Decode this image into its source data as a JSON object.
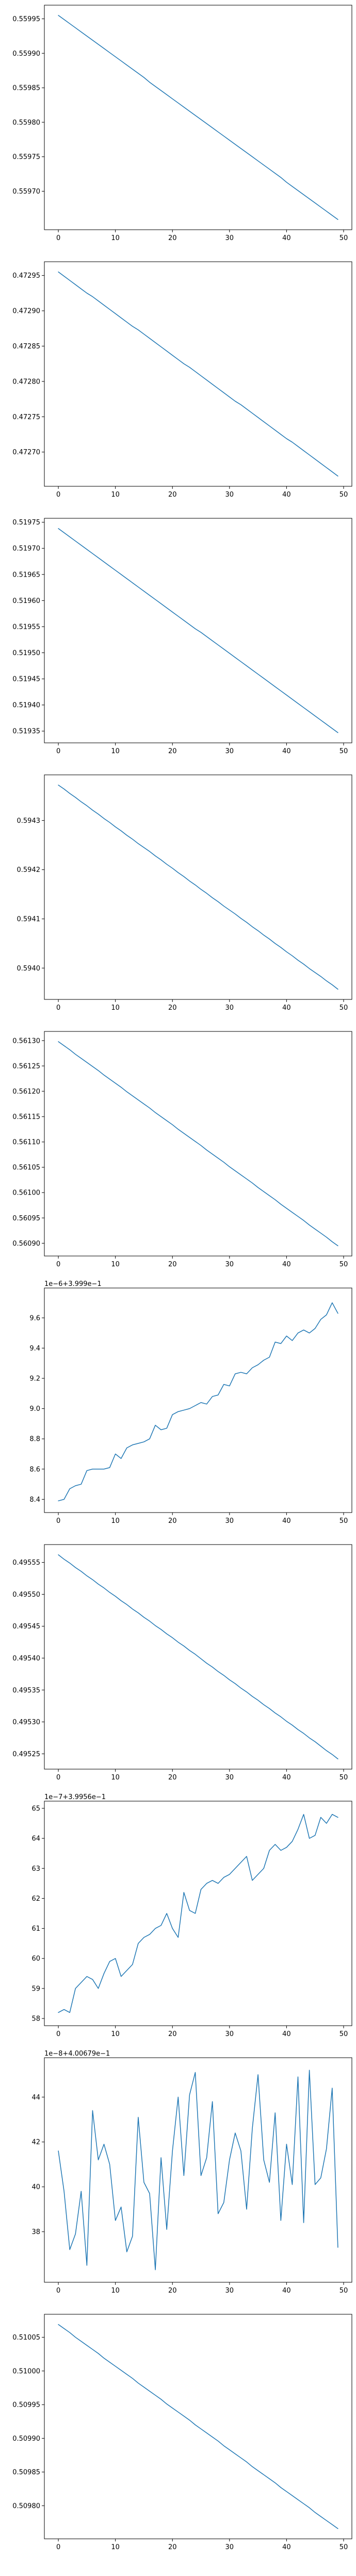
{
  "style": {
    "line_color": "#1f77b4",
    "axes_color": "#000000",
    "background": "#ffffff"
  },
  "chart_data": [
    {
      "type": "line",
      "x_range": [
        0,
        49
      ],
      "y_range": [
        0.559659,
        0.559955
      ],
      "x_ticks": [
        "0",
        "10",
        "20",
        "30",
        "40",
        "50"
      ],
      "y_ticks": [
        {
          "value": 0.5597,
          "label": "0.55970"
        },
        {
          "value": 0.55975,
          "label": "0.55975"
        },
        {
          "value": 0.5598,
          "label": "0.55980"
        },
        {
          "value": 0.55985,
          "label": "0.55985"
        },
        {
          "value": 0.5599,
          "label": "0.55990"
        },
        {
          "value": 0.55995,
          "label": "0.55995"
        }
      ],
      "offset_text": "",
      "series": [
        {
          "y": [
            0.559955,
            0.559949,
            0.559943,
            0.559937,
            0.559931,
            0.559925,
            0.559919,
            0.559913,
            0.559907,
            0.559901,
            0.559895,
            0.559889,
            0.559883,
            0.559877,
            0.559871,
            0.559865,
            0.559858,
            0.559852,
            0.559846,
            0.55984,
            0.559834,
            0.559828,
            0.559822,
            0.559816,
            0.55981,
            0.559804,
            0.559798,
            0.559792,
            0.559786,
            0.55978,
            0.559774,
            0.559768,
            0.559762,
            0.559756,
            0.55975,
            0.559744,
            0.559738,
            0.559732,
            0.559726,
            0.55972,
            0.559713,
            0.559707,
            0.559701,
            0.559695,
            0.559689,
            0.559683,
            0.559677,
            0.559671,
            0.559665,
            0.559659
          ]
        }
      ]
    },
    {
      "type": "line",
      "x_range": [
        0,
        49
      ],
      "y_range": [
        0.472666,
        0.472955
      ],
      "x_ticks": [
        "0",
        "10",
        "20",
        "30",
        "40",
        "50"
      ],
      "y_ticks": [
        {
          "value": 0.4727,
          "label": "0.47270"
        },
        {
          "value": 0.47275,
          "label": "0.47275"
        },
        {
          "value": 0.4728,
          "label": "0.47280"
        },
        {
          "value": 0.47285,
          "label": "0.47285"
        },
        {
          "value": 0.4729,
          "label": "0.47290"
        },
        {
          "value": 0.47295,
          "label": "0.47295"
        }
      ],
      "offset_text": "",
      "series": [
        {
          "y": [
            0.472955,
            0.472949,
            0.472943,
            0.472937,
            0.472931,
            0.472925,
            0.47292,
            0.472914,
            0.472908,
            0.472902,
            0.472896,
            0.47289,
            0.472884,
            0.472878,
            0.472873,
            0.472867,
            0.472861,
            0.472855,
            0.472849,
            0.472843,
            0.472837,
            0.472831,
            0.472825,
            0.47282,
            0.472814,
            0.472808,
            0.472802,
            0.472796,
            0.47279,
            0.472784,
            0.472778,
            0.472772,
            0.472767,
            0.472761,
            0.472755,
            0.472749,
            0.472743,
            0.472737,
            0.472731,
            0.472725,
            0.472719,
            0.472714,
            0.472708,
            0.472702,
            0.472696,
            0.47269,
            0.472684,
            0.472678,
            0.472672,
            0.472666
          ]
        }
      ]
    },
    {
      "type": "line",
      "x_range": [
        0,
        49
      ],
      "y_range": [
        0.519347,
        0.519738
      ],
      "x_ticks": [
        "0",
        "10",
        "20",
        "30",
        "40",
        "50"
      ],
      "y_ticks": [
        {
          "value": 0.51935,
          "label": "0.51935"
        },
        {
          "value": 0.5194,
          "label": "0.51940"
        },
        {
          "value": 0.51945,
          "label": "0.51945"
        },
        {
          "value": 0.5195,
          "label": "0.51950"
        },
        {
          "value": 0.51955,
          "label": "0.51955"
        },
        {
          "value": 0.5196,
          "label": "0.51960"
        },
        {
          "value": 0.51965,
          "label": "0.51965"
        },
        {
          "value": 0.5197,
          "label": "0.51970"
        },
        {
          "value": 0.51975,
          "label": "0.51975"
        }
      ],
      "offset_text": "",
      "series": [
        {
          "y": [
            0.519738,
            0.51973,
            0.519722,
            0.519714,
            0.519706,
            0.519698,
            0.51969,
            0.519682,
            0.519674,
            0.519666,
            0.519658,
            0.51965,
            0.519642,
            0.519634,
            0.519626,
            0.519618,
            0.51961,
            0.519602,
            0.519594,
            0.519586,
            0.519578,
            0.51957,
            0.519562,
            0.519554,
            0.519546,
            0.519539,
            0.519531,
            0.519523,
            0.519515,
            0.519507,
            0.519499,
            0.519491,
            0.519483,
            0.519475,
            0.519467,
            0.519459,
            0.519451,
            0.519443,
            0.519435,
            0.519427,
            0.519419,
            0.519411,
            0.519403,
            0.519395,
            0.519387,
            0.519379,
            0.519371,
            0.519363,
            0.519355,
            0.519347
          ]
        }
      ]
    },
    {
      "type": "line",
      "x_range": [
        0,
        49
      ],
      "y_range": [
        0.593957,
        0.594372
      ],
      "x_ticks": [
        "0",
        "10",
        "20",
        "30",
        "40",
        "50"
      ],
      "y_ticks": [
        {
          "value": 0.594,
          "label": "0.5940"
        },
        {
          "value": 0.5941,
          "label": "0.5941"
        },
        {
          "value": 0.5942,
          "label": "0.5942"
        },
        {
          "value": 0.5943,
          "label": "0.5943"
        }
      ],
      "offset_text": "",
      "series": [
        {
          "y": [
            0.594372,
            0.594364,
            0.594355,
            0.594347,
            0.594338,
            0.59433,
            0.594321,
            0.594313,
            0.594304,
            0.594296,
            0.594287,
            0.594279,
            0.59427,
            0.594262,
            0.594253,
            0.594245,
            0.594237,
            0.594228,
            0.59422,
            0.594211,
            0.594203,
            0.594194,
            0.594186,
            0.594177,
            0.594169,
            0.59416,
            0.594152,
            0.594143,
            0.594135,
            0.594126,
            0.594118,
            0.59411,
            0.594101,
            0.594093,
            0.594084,
            0.594076,
            0.594067,
            0.594059,
            0.59405,
            0.594042,
            0.594033,
            0.594025,
            0.594016,
            0.594008,
            0.593999,
            0.593991,
            0.593983,
            0.593974,
            0.593966,
            0.593957
          ]
        }
      ]
    },
    {
      "type": "line",
      "x_range": [
        0,
        49
      ],
      "y_range": [
        0.560895,
        0.561298
      ],
      "x_ticks": [
        "0",
        "10",
        "20",
        "30",
        "40",
        "50"
      ],
      "y_ticks": [
        {
          "value": 0.5609,
          "label": "0.56090"
        },
        {
          "value": 0.56095,
          "label": "0.56095"
        },
        {
          "value": 0.561,
          "label": "0.56100"
        },
        {
          "value": 0.56105,
          "label": "0.56105"
        },
        {
          "value": 0.5611,
          "label": "0.56110"
        },
        {
          "value": 0.56115,
          "label": "0.56115"
        },
        {
          "value": 0.5612,
          "label": "0.56120"
        },
        {
          "value": 0.56125,
          "label": "0.56125"
        },
        {
          "value": 0.5613,
          "label": "0.56130"
        }
      ],
      "offset_text": "",
      "series": [
        {
          "y": [
            0.561298,
            0.56129,
            0.561282,
            0.561273,
            0.561265,
            0.561257,
            0.561249,
            0.561241,
            0.561232,
            0.561224,
            0.561216,
            0.561208,
            0.561199,
            0.561191,
            0.561183,
            0.561175,
            0.561167,
            0.561158,
            0.56115,
            0.561142,
            0.561134,
            0.561125,
            0.561117,
            0.561109,
            0.561101,
            0.561093,
            0.561084,
            0.561076,
            0.561068,
            0.56106,
            0.561051,
            0.561043,
            0.561035,
            0.561027,
            0.561019,
            0.56101,
            0.561002,
            0.560994,
            0.560986,
            0.560977,
            0.560969,
            0.560961,
            0.560953,
            0.560945,
            0.560936,
            0.560928,
            0.56092,
            0.560912,
            0.560903,
            0.560895
          ]
        }
      ]
    },
    {
      "type": "line",
      "x_range": [
        0,
        49
      ],
      "y_range": [
        8.38,
        9.73
      ],
      "x_ticks": [
        "0",
        "10",
        "20",
        "30",
        "40",
        "50"
      ],
      "y_ticks": [
        {
          "value": 8.4,
          "label": "8.4"
        },
        {
          "value": 8.6,
          "label": "8.6"
        },
        {
          "value": 8.8,
          "label": "8.8"
        },
        {
          "value": 9.0,
          "label": "9.0"
        },
        {
          "value": 9.2,
          "label": "9.2"
        },
        {
          "value": 9.4,
          "label": "9.4"
        },
        {
          "value": 9.6,
          "label": "9.6"
        }
      ],
      "offset_text": "1e−6+3.999e−1",
      "series": [
        {
          "y": [
            8.39,
            8.4,
            8.47,
            8.49,
            8.5,
            8.59,
            8.6,
            8.6,
            8.6,
            8.61,
            8.7,
            8.67,
            8.74,
            8.76,
            8.77,
            8.78,
            8.8,
            8.89,
            8.86,
            8.87,
            8.96,
            8.98,
            8.99,
            9.0,
            9.02,
            9.04,
            9.03,
            9.08,
            9.09,
            9.16,
            9.15,
            9.23,
            9.24,
            9.23,
            9.27,
            9.29,
            9.32,
            9.34,
            9.44,
            9.43,
            9.48,
            9.45,
            9.5,
            9.52,
            9.5,
            9.53,
            9.59,
            9.62,
            9.7,
            9.63
          ]
        }
      ]
    },
    {
      "type": "line",
      "x_range": [
        0,
        49
      ],
      "y_range": [
        0.495242,
        0.495562
      ],
      "x_ticks": [
        "0",
        "10",
        "20",
        "30",
        "40",
        "50"
      ],
      "y_ticks": [
        {
          "value": 0.49525,
          "label": "0.49525"
        },
        {
          "value": 0.4953,
          "label": "0.49530"
        },
        {
          "value": 0.49535,
          "label": "0.49535"
        },
        {
          "value": 0.4954,
          "label": "0.49540"
        },
        {
          "value": 0.49545,
          "label": "0.49545"
        },
        {
          "value": 0.4955,
          "label": "0.49550"
        },
        {
          "value": 0.49555,
          "label": "0.49555"
        }
      ],
      "offset_text": "",
      "series": [
        {
          "y": [
            0.495562,
            0.495555,
            0.495549,
            0.495542,
            0.495536,
            0.495529,
            0.495523,
            0.495516,
            0.49551,
            0.495503,
            0.495497,
            0.49549,
            0.495484,
            0.495477,
            0.495471,
            0.495464,
            0.495458,
            0.495451,
            0.495445,
            0.495438,
            0.495432,
            0.495425,
            0.495419,
            0.495412,
            0.495406,
            0.495399,
            0.495392,
            0.495386,
            0.495379,
            0.495373,
            0.495366,
            0.49536,
            0.495353,
            0.495347,
            0.49534,
            0.495334,
            0.495327,
            0.495321,
            0.495314,
            0.495308,
            0.495301,
            0.495295,
            0.495288,
            0.495282,
            0.495275,
            0.495269,
            0.495262,
            0.495255,
            0.495249,
            0.495242
          ]
        }
      ]
    },
    {
      "type": "line",
      "x_range": [
        0,
        49
      ],
      "y_range": [
        58.1,
        64.9
      ],
      "x_ticks": [
        "0",
        "10",
        "20",
        "30",
        "40",
        "50"
      ],
      "y_ticks": [
        {
          "value": 58,
          "label": "58"
        },
        {
          "value": 59,
          "label": "59"
        },
        {
          "value": 60,
          "label": "60"
        },
        {
          "value": 61,
          "label": "61"
        },
        {
          "value": 62,
          "label": "62"
        },
        {
          "value": 63,
          "label": "63"
        },
        {
          "value": 64,
          "label": "64"
        },
        {
          "value": 65,
          "label": "65"
        }
      ],
      "offset_text": "1e−7+3.9956e−1",
      "series": [
        {
          "y": [
            58.2,
            58.3,
            58.2,
            59.0,
            59.2,
            59.4,
            59.3,
            59.0,
            59.5,
            59.9,
            60.0,
            59.4,
            59.6,
            59.8,
            60.5,
            60.7,
            60.8,
            61.0,
            61.1,
            61.5,
            61.0,
            60.7,
            62.2,
            61.6,
            61.5,
            62.3,
            62.5,
            62.6,
            62.5,
            62.7,
            62.8,
            63.0,
            63.2,
            63.4,
            62.6,
            62.8,
            63.0,
            63.6,
            63.8,
            63.6,
            63.7,
            63.9,
            64.3,
            64.8,
            64.0,
            64.1,
            64.7,
            64.5,
            64.8,
            64.7
          ]
        }
      ]
    },
    {
      "type": "line",
      "x_range": [
        0,
        49
      ],
      "y_range": [
        36.2,
        45.3
      ],
      "x_ticks": [
        "0",
        "10",
        "20",
        "30",
        "40",
        "50"
      ],
      "y_ticks": [
        {
          "value": 38,
          "label": "38"
        },
        {
          "value": 40,
          "label": "40"
        },
        {
          "value": 42,
          "label": "42"
        },
        {
          "value": 44,
          "label": "44"
        }
      ],
      "offset_text": "1e−8+4.00679e−1",
      "series": [
        {
          "y": [
            41.6,
            39.8,
            37.2,
            37.9,
            39.8,
            36.5,
            43.4,
            41.2,
            41.9,
            41.0,
            38.5,
            39.1,
            37.1,
            37.8,
            43.1,
            40.2,
            39.7,
            36.3,
            41.3,
            38.1,
            41.6,
            44.0,
            40.5,
            44.1,
            45.1,
            40.5,
            41.3,
            43.8,
            38.8,
            39.3,
            41.2,
            42.4,
            41.6,
            39.0,
            42.6,
            45.0,
            41.2,
            40.2,
            43.3,
            38.5,
            41.9,
            40.1,
            44.9,
            38.4,
            45.2,
            40.1,
            40.4,
            41.7,
            44.4,
            37.3
          ]
        }
      ]
    },
    {
      "type": "line",
      "x_range": [
        0,
        49
      ],
      "y_range": [
        0.509766,
        0.510069
      ],
      "x_ticks": [
        "0",
        "10",
        "20",
        "30",
        "40",
        "50"
      ],
      "y_ticks": [
        {
          "value": 0.5098,
          "label": "0.50980"
        },
        {
          "value": 0.50985,
          "label": "0.50985"
        },
        {
          "value": 0.5099,
          "label": "0.50990"
        },
        {
          "value": 0.50995,
          "label": "0.50995"
        },
        {
          "value": 0.51,
          "label": "0.51000"
        },
        {
          "value": 0.51005,
          "label": "0.51005"
        }
      ],
      "offset_text": "",
      "series": [
        {
          "y": [
            0.510069,
            0.510063,
            0.510057,
            0.51005,
            0.510044,
            0.510038,
            0.510032,
            0.510026,
            0.510019,
            0.510013,
            0.510007,
            0.510001,
            0.509995,
            0.509989,
            0.509982,
            0.509976,
            0.50997,
            0.509964,
            0.509958,
            0.509951,
            0.509945,
            0.509939,
            0.509933,
            0.509927,
            0.50992,
            0.509914,
            0.509908,
            0.509902,
            0.509896,
            0.509889,
            0.509883,
            0.509877,
            0.509871,
            0.509865,
            0.509858,
            0.509852,
            0.509846,
            0.50984,
            0.509834,
            0.509827,
            0.509821,
            0.509815,
            0.509809,
            0.509803,
            0.509797,
            0.50979,
            0.509784,
            0.509778,
            0.509772,
            0.509766
          ]
        }
      ]
    }
  ]
}
